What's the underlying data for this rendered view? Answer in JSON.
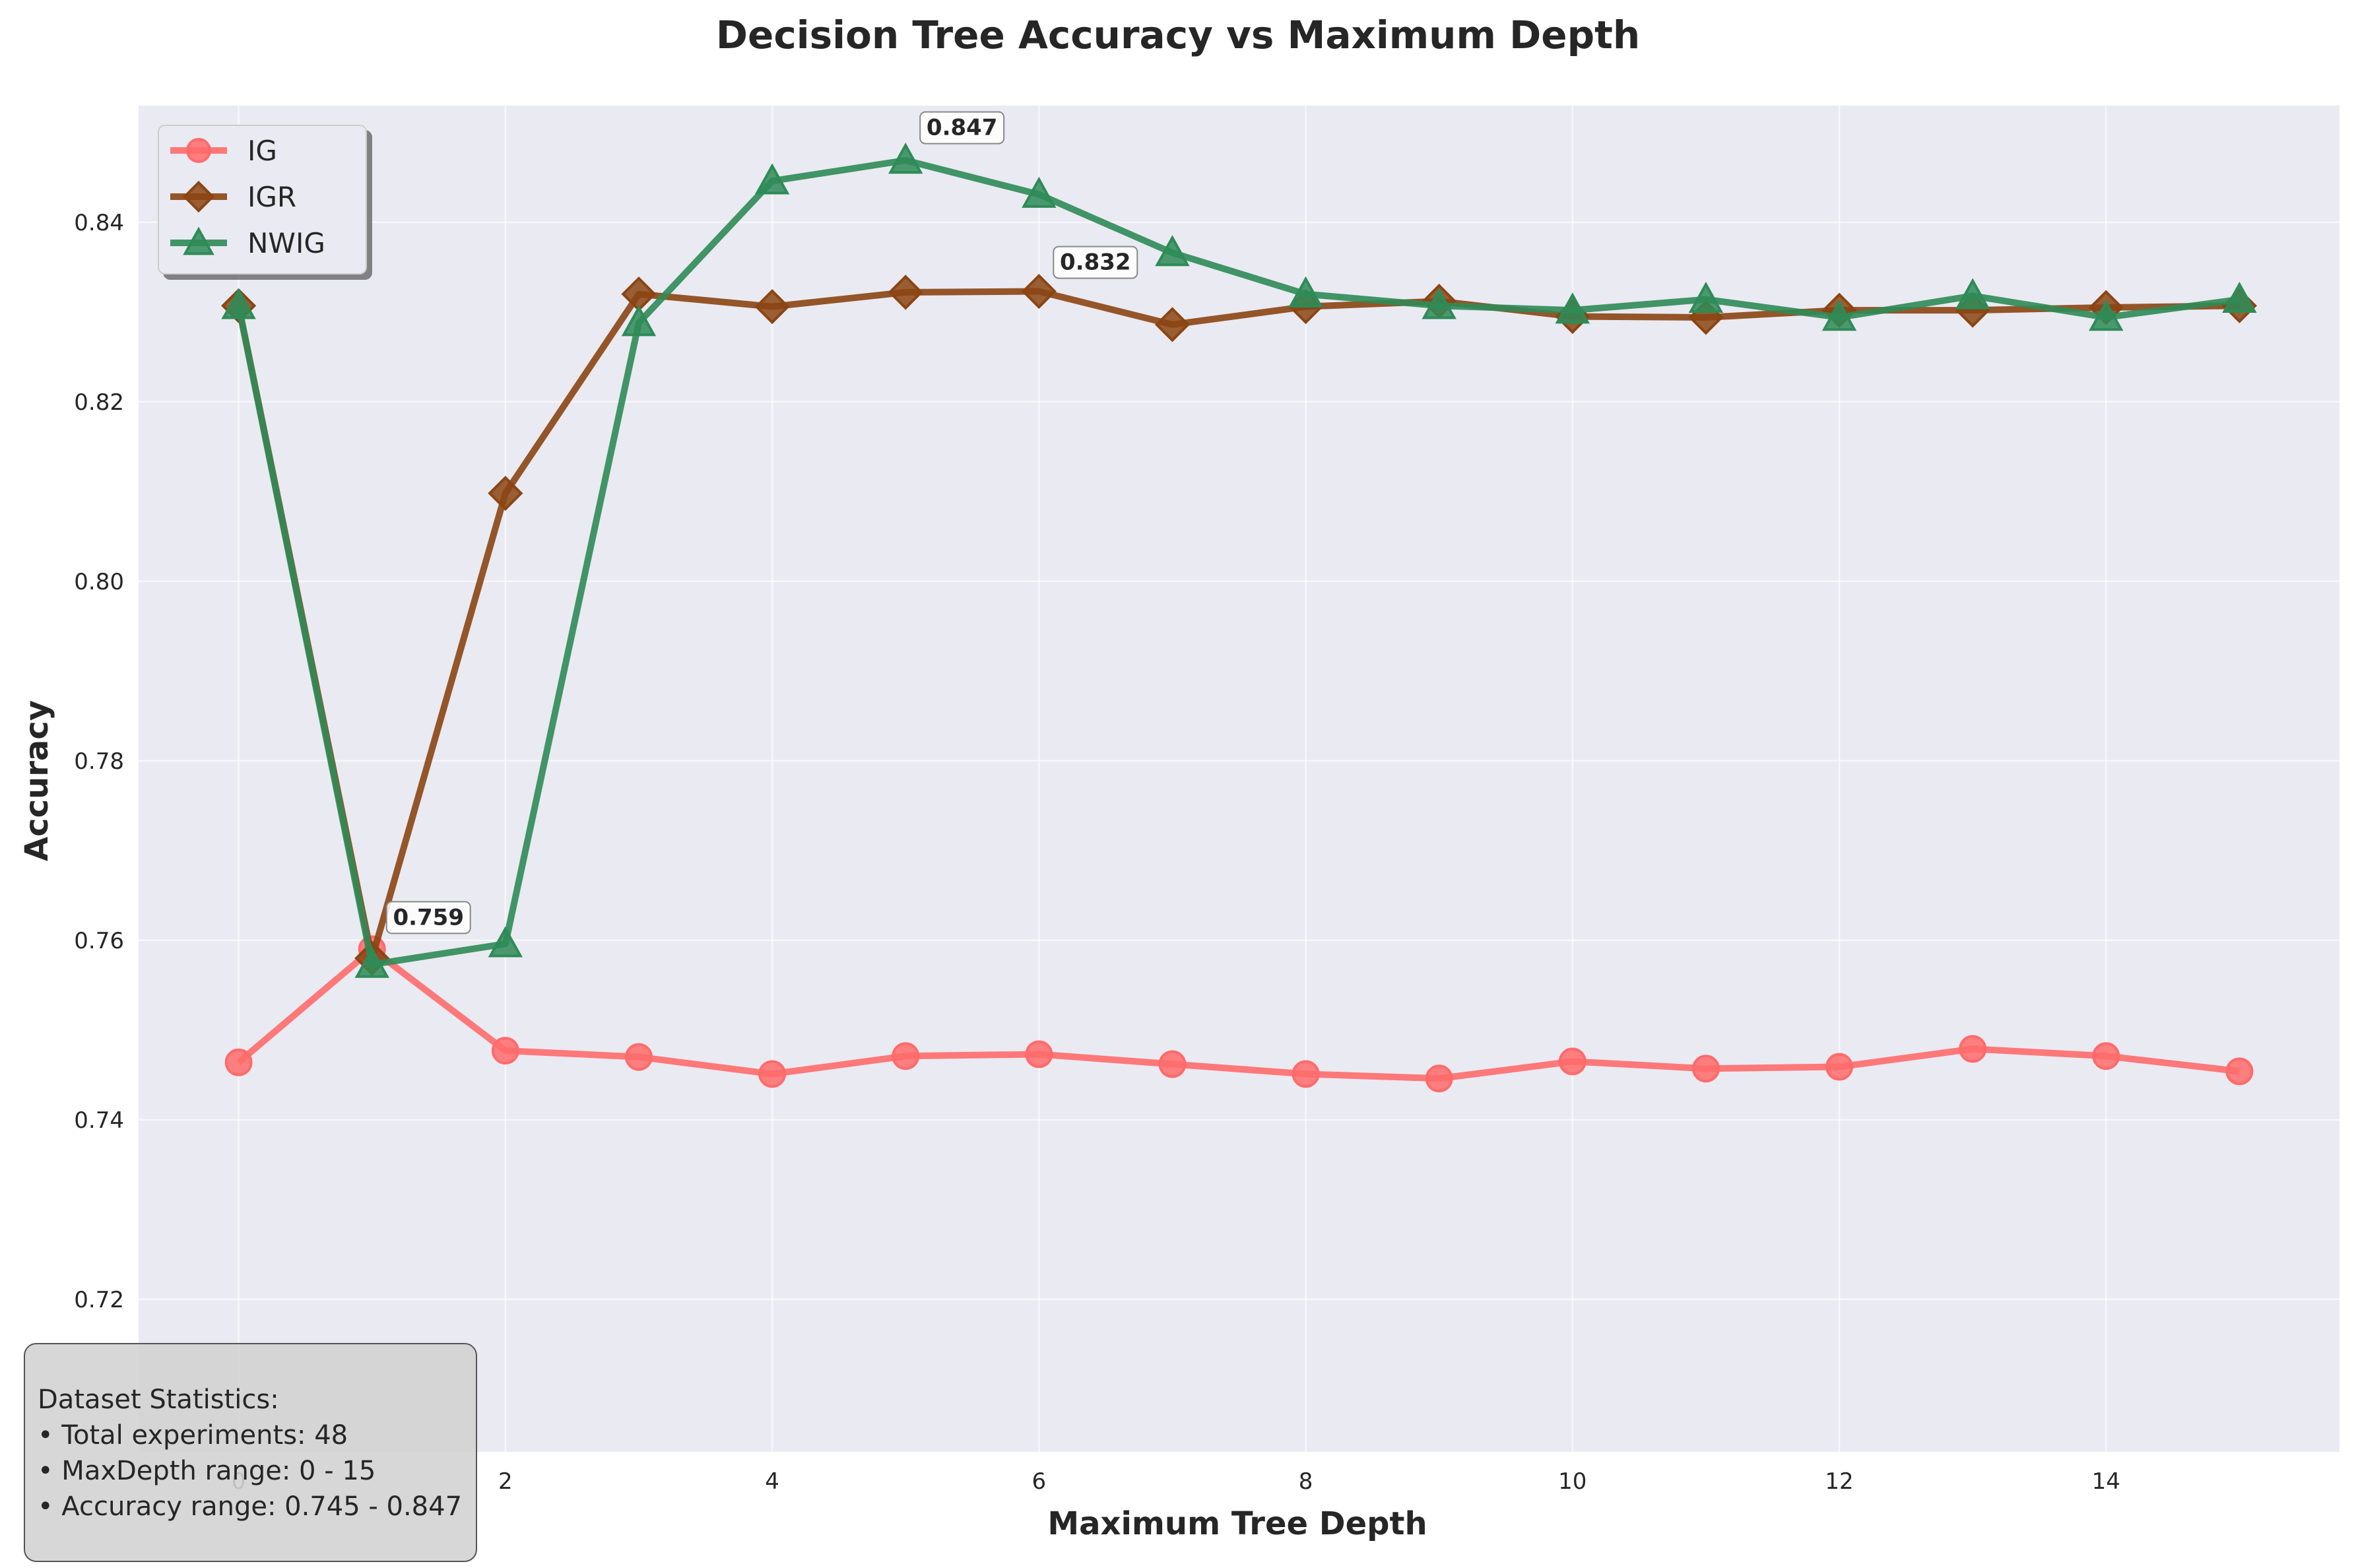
{
  "chart_data": {
    "type": "line",
    "title": "Decision Tree Accuracy vs Maximum Depth",
    "xlabel": "Maximum Tree Depth",
    "ylabel": "Accuracy",
    "x": [
      0,
      1,
      2,
      3,
      4,
      5,
      6,
      7,
      8,
      9,
      10,
      11,
      12,
      13,
      14,
      15
    ],
    "xlim": [
      -0.75,
      15.75
    ],
    "ylim": [
      0.703,
      0.853
    ],
    "xticks": [
      0,
      2,
      4,
      6,
      8,
      10,
      12,
      14
    ],
    "xtick_labels": [
      "0",
      "2",
      "4",
      "6",
      "8",
      "10",
      "12",
      "14"
    ],
    "yticks": [
      0.72,
      0.74,
      0.76,
      0.78,
      0.8,
      0.82,
      0.84
    ],
    "ytick_labels": [
      "0.72",
      "0.74",
      "0.76",
      "0.78",
      "0.80",
      "0.82",
      "0.84"
    ],
    "grid": true,
    "legend_position": "upper-left",
    "background_color": "#eaeaf2",
    "series": [
      {
        "name": "IG",
        "color": "#ff6b6b",
        "marker": "circle",
        "values": [
          0.7464,
          0.759,
          0.7477,
          0.747,
          0.7451,
          0.7471,
          0.7473,
          0.7462,
          0.7451,
          0.7446,
          0.7465,
          0.7457,
          0.7459,
          0.7479,
          0.7471,
          0.7454
        ]
      },
      {
        "name": "IGR",
        "color": "#8b4513",
        "marker": "diamond",
        "values": [
          0.8307,
          0.758,
          0.8098,
          0.832,
          0.8306,
          0.8322,
          0.8323,
          0.8286,
          0.8306,
          0.8312,
          0.8295,
          0.8294,
          0.8302,
          0.8302,
          0.8305,
          0.8307
        ]
      },
      {
        "name": "NWIG",
        "color": "#2e8b57",
        "marker": "triangle",
        "values": [
          0.8307,
          0.7573,
          0.7596,
          0.8288,
          0.8446,
          0.8469,
          0.8431,
          0.8366,
          0.832,
          0.8307,
          0.8302,
          0.8314,
          0.8294,
          0.8318,
          0.8294,
          0.8314
        ]
      }
    ],
    "annotations": [
      {
        "text": "0.759",
        "x": 1,
        "y": 0.759
      },
      {
        "text": "0.832",
        "x": 6,
        "y": 0.832
      },
      {
        "text": "0.847",
        "x": 5,
        "y": 0.847
      }
    ]
  },
  "stats_box": {
    "heading": "Dataset Statistics:",
    "line1": "• Total experiments: 48",
    "line2": "• MaxDepth range: 0 - 15",
    "line3": "• Accuracy range: 0.745 - 0.847"
  }
}
